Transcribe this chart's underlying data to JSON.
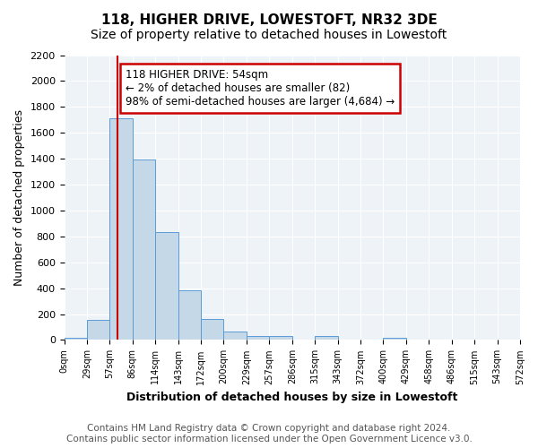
{
  "title": "118, HIGHER DRIVE, LOWESTOFT, NR32 3DE",
  "subtitle": "Size of property relative to detached houses in Lowestoft",
  "xlabel": "Distribution of detached houses by size in Lowestoft",
  "ylabel": "Number of detached properties",
  "annotation_line1": "118 HIGHER DRIVE: 54sqm",
  "annotation_line2": "← 2% of detached houses are smaller (82)",
  "annotation_line3": "98% of semi-detached houses are larger (4,684) →",
  "footer_line1": "Contains HM Land Registry data © Crown copyright and database right 2024.",
  "footer_line2": "Contains public sector information licensed under the Open Government Licence v3.0.",
  "bin_labels": [
    "0sqm",
    "29sqm",
    "57sqm",
    "86sqm",
    "114sqm",
    "143sqm",
    "172sqm",
    "200sqm",
    "229sqm",
    "257sqm",
    "286sqm",
    "315sqm",
    "343sqm",
    "372sqm",
    "400sqm",
    "429sqm",
    "458sqm",
    "486sqm",
    "515sqm",
    "543sqm",
    "572sqm"
  ],
  "bar_values": [
    20,
    155,
    1710,
    1395,
    830,
    385,
    160,
    65,
    30,
    30,
    0,
    30,
    0,
    0,
    20,
    0,
    0,
    0,
    0,
    0
  ],
  "bar_color": "#c5d8e8",
  "bar_edge_color": "#5b9bd5",
  "red_line_x": 1.85,
  "ylim": [
    0,
    2200
  ],
  "yticks": [
    0,
    200,
    400,
    600,
    800,
    1000,
    1200,
    1400,
    1600,
    1800,
    2000,
    2200
  ],
  "background_color": "#eef3f8",
  "annotation_box_color": "#ffffff",
  "annotation_box_edge_color": "#cc0000",
  "red_line_color": "#cc0000",
  "title_fontsize": 11,
  "subtitle_fontsize": 10,
  "axis_label_fontsize": 9,
  "annotation_fontsize": 8.5,
  "footer_fontsize": 7.5
}
